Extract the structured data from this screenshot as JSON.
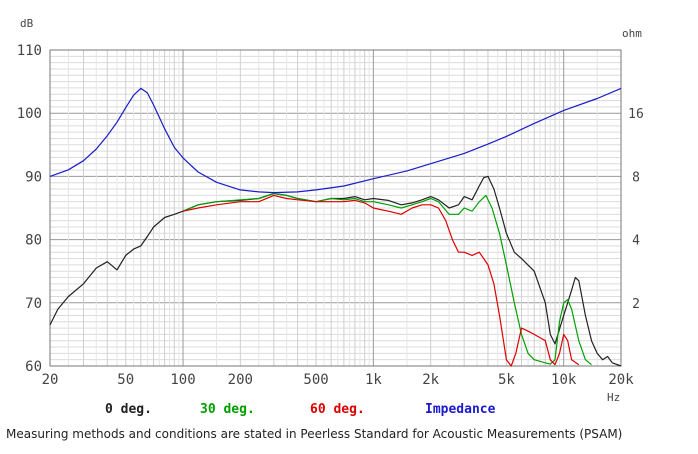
{
  "chart_data": {
    "type": "line",
    "title": "",
    "xlabel": "Hz",
    "ylabel": "dB",
    "y2label": "ohm",
    "xscale": "log",
    "xlim": [
      20,
      20000
    ],
    "ylim": [
      60,
      110
    ],
    "y2scale": "log",
    "y2lim": [
      1,
      32
    ],
    "grid": true,
    "legend": "bottom",
    "x_ticks": [
      {
        "value": 20,
        "label": "20"
      },
      {
        "value": 50,
        "label": "50"
      },
      {
        "value": 100,
        "label": "100"
      },
      {
        "value": 200,
        "label": "200"
      },
      {
        "value": 500,
        "label": "500"
      },
      {
        "value": 1000,
        "label": "1k"
      },
      {
        "value": 2000,
        "label": "2k"
      },
      {
        "value": 5000,
        "label": "5k"
      },
      {
        "value": 10000,
        "label": "10k"
      },
      {
        "value": 20000,
        "label": "20k"
      }
    ],
    "y_ticks": [
      {
        "value": 60,
        "label": "60"
      },
      {
        "value": 70,
        "label": "70"
      },
      {
        "value": 80,
        "label": "80"
      },
      {
        "value": 90,
        "label": "90"
      },
      {
        "value": 100,
        "label": "100"
      },
      {
        "value": 110,
        "label": "110"
      }
    ],
    "y2_ticks": [
      {
        "value": 2,
        "label": "2"
      },
      {
        "value": 4,
        "label": "4"
      },
      {
        "value": 8,
        "label": "8"
      },
      {
        "value": 16,
        "label": "16"
      }
    ],
    "series": [
      {
        "name": "0 deg.",
        "color": "#222222",
        "axis": "left",
        "points": [
          [
            20,
            66.5
          ],
          [
            22,
            69
          ],
          [
            25,
            71
          ],
          [
            30,
            73
          ],
          [
            35,
            75.5
          ],
          [
            40,
            76.5
          ],
          [
            45,
            75.2
          ],
          [
            50,
            77.5
          ],
          [
            55,
            78.5
          ],
          [
            60,
            79
          ],
          [
            65,
            80.5
          ],
          [
            70,
            82
          ],
          [
            80,
            83.5
          ],
          [
            90,
            84
          ],
          [
            100,
            84.5
          ],
          [
            120,
            85.5
          ],
          [
            150,
            86
          ],
          [
            200,
            86.2
          ],
          [
            250,
            86.5
          ],
          [
            300,
            87.3
          ],
          [
            350,
            87
          ],
          [
            400,
            86.5
          ],
          [
            500,
            86
          ],
          [
            600,
            86.5
          ],
          [
            700,
            86.5
          ],
          [
            800,
            86.8
          ],
          [
            900,
            86.3
          ],
          [
            1000,
            86.5
          ],
          [
            1200,
            86.2
          ],
          [
            1400,
            85.5
          ],
          [
            1600,
            85.8
          ],
          [
            1800,
            86.3
          ],
          [
            2000,
            86.8
          ],
          [
            2200,
            86.3
          ],
          [
            2500,
            85
          ],
          [
            2800,
            85.5
          ],
          [
            3000,
            86.8
          ],
          [
            3300,
            86.3
          ],
          [
            3600,
            88.5
          ],
          [
            3800,
            89.8
          ],
          [
            4000,
            90
          ],
          [
            4300,
            88
          ],
          [
            4600,
            85
          ],
          [
            5000,
            81
          ],
          [
            5500,
            78
          ],
          [
            6000,
            77
          ],
          [
            7000,
            75
          ],
          [
            8000,
            70
          ],
          [
            8500,
            65
          ],
          [
            9000,
            63.5
          ],
          [
            10000,
            68
          ],
          [
            11000,
            72
          ],
          [
            11500,
            74
          ],
          [
            12000,
            73.5
          ],
          [
            13000,
            68
          ],
          [
            14000,
            64
          ],
          [
            15000,
            62
          ],
          [
            16000,
            61
          ],
          [
            17000,
            61.5
          ],
          [
            18000,
            60.5
          ],
          [
            20000,
            60
          ]
        ]
      },
      {
        "name": "30 deg.",
        "color": "#00a000",
        "axis": "left",
        "points": [
          [
            100,
            84.5
          ],
          [
            120,
            85.5
          ],
          [
            150,
            86
          ],
          [
            200,
            86.3
          ],
          [
            250,
            86.5
          ],
          [
            300,
            87.3
          ],
          [
            350,
            87
          ],
          [
            400,
            86.5
          ],
          [
            500,
            86
          ],
          [
            600,
            86.5
          ],
          [
            700,
            86.3
          ],
          [
            800,
            86.5
          ],
          [
            900,
            86
          ],
          [
            1000,
            86
          ],
          [
            1200,
            85.5
          ],
          [
            1400,
            85
          ],
          [
            1600,
            85.5
          ],
          [
            1800,
            86
          ],
          [
            2000,
            86.5
          ],
          [
            2200,
            86
          ],
          [
            2500,
            84
          ],
          [
            2800,
            84
          ],
          [
            3000,
            85
          ],
          [
            3300,
            84.5
          ],
          [
            3600,
            86
          ],
          [
            3900,
            87
          ],
          [
            4200,
            85
          ],
          [
            4600,
            81
          ],
          [
            5000,
            76
          ],
          [
            5500,
            70
          ],
          [
            6000,
            65
          ],
          [
            6500,
            62
          ],
          [
            7000,
            61
          ],
          [
            8000,
            60.5
          ],
          [
            8500,
            60.3
          ],
          [
            9000,
            61
          ],
          [
            9500,
            67
          ],
          [
            10000,
            70
          ],
          [
            10500,
            70.5
          ],
          [
            11000,
            69
          ],
          [
            12000,
            64
          ],
          [
            13000,
            61
          ],
          [
            14000,
            60.2
          ]
        ]
      },
      {
        "name": "60 deg.",
        "color": "#dd0000",
        "axis": "left",
        "points": [
          [
            100,
            84.5
          ],
          [
            120,
            85
          ],
          [
            150,
            85.5
          ],
          [
            200,
            86
          ],
          [
            250,
            86
          ],
          [
            300,
            87
          ],
          [
            350,
            86.5
          ],
          [
            400,
            86.3
          ],
          [
            500,
            86
          ],
          [
            600,
            86
          ],
          [
            700,
            86
          ],
          [
            800,
            86.2
          ],
          [
            900,
            85.8
          ],
          [
            1000,
            85
          ],
          [
            1200,
            84.5
          ],
          [
            1400,
            84
          ],
          [
            1600,
            85
          ],
          [
            1800,
            85.5
          ],
          [
            2000,
            85.5
          ],
          [
            2200,
            85
          ],
          [
            2400,
            83
          ],
          [
            2600,
            80
          ],
          [
            2800,
            78
          ],
          [
            3000,
            78
          ],
          [
            3300,
            77.5
          ],
          [
            3600,
            78
          ],
          [
            4000,
            76
          ],
          [
            4300,
            73
          ],
          [
            4600,
            68
          ],
          [
            5000,
            61
          ],
          [
            5300,
            60
          ],
          [
            5600,
            62
          ],
          [
            6000,
            66
          ],
          [
            6500,
            65.5
          ],
          [
            7000,
            65
          ],
          [
            7500,
            64.5
          ],
          [
            8000,
            64
          ],
          [
            8500,
            61
          ],
          [
            9000,
            60.2
          ],
          [
            9500,
            62
          ],
          [
            10000,
            65
          ],
          [
            10500,
            64
          ],
          [
            11000,
            61
          ],
          [
            12000,
            60.2
          ]
        ]
      },
      {
        "name": "Impedance",
        "color": "#1a1acc",
        "axis": "right",
        "points": [
          [
            20,
            8.0
          ],
          [
            25,
            8.6
          ],
          [
            30,
            9.5
          ],
          [
            35,
            10.8
          ],
          [
            40,
            12.5
          ],
          [
            45,
            14.5
          ],
          [
            50,
            17.0
          ],
          [
            55,
            19.5
          ],
          [
            60,
            21.0
          ],
          [
            65,
            20.0
          ],
          [
            70,
            17.5
          ],
          [
            80,
            13.5
          ],
          [
            90,
            11.0
          ],
          [
            100,
            9.8
          ],
          [
            120,
            8.4
          ],
          [
            150,
            7.5
          ],
          [
            200,
            6.9
          ],
          [
            250,
            6.75
          ],
          [
            300,
            6.7
          ],
          [
            400,
            6.75
          ],
          [
            500,
            6.9
          ],
          [
            700,
            7.2
          ],
          [
            1000,
            7.8
          ],
          [
            1500,
            8.5
          ],
          [
            2000,
            9.2
          ],
          [
            3000,
            10.3
          ],
          [
            4000,
            11.4
          ],
          [
            5000,
            12.4
          ],
          [
            7000,
            14.3
          ],
          [
            10000,
            16.5
          ],
          [
            15000,
            18.8
          ],
          [
            20000,
            21.0
          ]
        ]
      }
    ]
  },
  "footnote": "Measuring methods and conditions are stated in Peerless Standard for Acoustic Measurements (PSAM)"
}
